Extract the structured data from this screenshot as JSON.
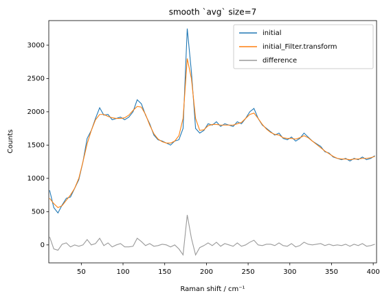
{
  "chart_data": {
    "type": "line",
    "title": "smooth `avg` size=7",
    "xlabel": "Raman shift / cm⁻¹",
    "ylabel": "Counts",
    "x": [
      12,
      17,
      22,
      27,
      32,
      37,
      42,
      47,
      52,
      57,
      62,
      67,
      72,
      77,
      82,
      87,
      92,
      97,
      102,
      107,
      112,
      117,
      122,
      127,
      132,
      137,
      142,
      147,
      152,
      157,
      162,
      167,
      172,
      177,
      182,
      187,
      192,
      197,
      202,
      207,
      212,
      217,
      222,
      227,
      232,
      237,
      242,
      247,
      252,
      257,
      262,
      267,
      272,
      277,
      282,
      287,
      292,
      297,
      302,
      307,
      312,
      317,
      322,
      327,
      332,
      337,
      342,
      347,
      352,
      357,
      362,
      367,
      372,
      377,
      382,
      387,
      392,
      397,
      402
    ],
    "series": [
      {
        "name": "initial",
        "color": "#1f77b4",
        "values": [
          820,
          560,
          480,
          600,
          700,
          720,
          850,
          980,
          1250,
          1600,
          1720,
          1900,
          2060,
          1950,
          1960,
          1880,
          1900,
          1920,
          1880,
          1920,
          2000,
          2180,
          2120,
          1950,
          1820,
          1650,
          1580,
          1560,
          1530,
          1500,
          1560,
          1580,
          1750,
          3250,
          2600,
          1750,
          1680,
          1720,
          1820,
          1800,
          1850,
          1780,
          1820,
          1800,
          1780,
          1850,
          1820,
          1900,
          2000,
          2050,
          1900,
          1800,
          1750,
          1700,
          1650,
          1680,
          1600,
          1580,
          1620,
          1560,
          1600,
          1680,
          1620,
          1560,
          1520,
          1480,
          1400,
          1380,
          1320,
          1300,
          1280,
          1300,
          1260,
          1300,
          1280,
          1320,
          1280,
          1300,
          1340
        ]
      },
      {
        "name": "initial_Filter.transform",
        "color": "#ff7f0e",
        "values": [
          700,
          620,
          560,
          590,
          670,
          750,
          850,
          1000,
          1250,
          1520,
          1720,
          1880,
          1960,
          1960,
          1930,
          1910,
          1900,
          1900,
          1910,
          1950,
          2020,
          2080,
          2070,
          1960,
          1800,
          1670,
          1590,
          1550,
          1530,
          1530,
          1560,
          1640,
          1900,
          2800,
          2500,
          1900,
          1720,
          1730,
          1790,
          1810,
          1810,
          1800,
          1800,
          1800,
          1800,
          1820,
          1840,
          1900,
          1960,
          1980,
          1900,
          1810,
          1740,
          1690,
          1660,
          1650,
          1610,
          1600,
          1600,
          1590,
          1610,
          1640,
          1610,
          1560,
          1510,
          1460,
          1410,
          1370,
          1330,
          1300,
          1290,
          1290,
          1280,
          1290,
          1290,
          1300,
          1300,
          1310,
          1330
        ]
      },
      {
        "name": "difference",
        "color": "#999999",
        "values": [
          120,
          -60,
          -80,
          10,
          30,
          -30,
          0,
          -20,
          0,
          80,
          0,
          20,
          100,
          -10,
          30,
          -30,
          0,
          20,
          -30,
          -30,
          -20,
          100,
          50,
          -10,
          20,
          -20,
          -10,
          10,
          0,
          -30,
          0,
          -60,
          -150,
          450,
          100,
          -150,
          -40,
          -10,
          30,
          -10,
          40,
          -20,
          20,
          0,
          -20,
          30,
          -20,
          0,
          40,
          70,
          0,
          -10,
          10,
          10,
          -10,
          30,
          -10,
          -20,
          20,
          -30,
          -10,
          40,
          10,
          0,
          10,
          20,
          -10,
          10,
          -10,
          0,
          -10,
          10,
          -20,
          10,
          -10,
          20,
          -20,
          -10,
          10
        ]
      }
    ],
    "xlim": [
      11,
      404
    ],
    "ylim": [
      -270,
      3370
    ],
    "xticks": [
      50,
      100,
      150,
      200,
      250,
      300,
      350,
      400
    ],
    "yticks": [
      0,
      500,
      1000,
      1500,
      2000,
      2500,
      3000
    ],
    "legend": "upper right"
  }
}
